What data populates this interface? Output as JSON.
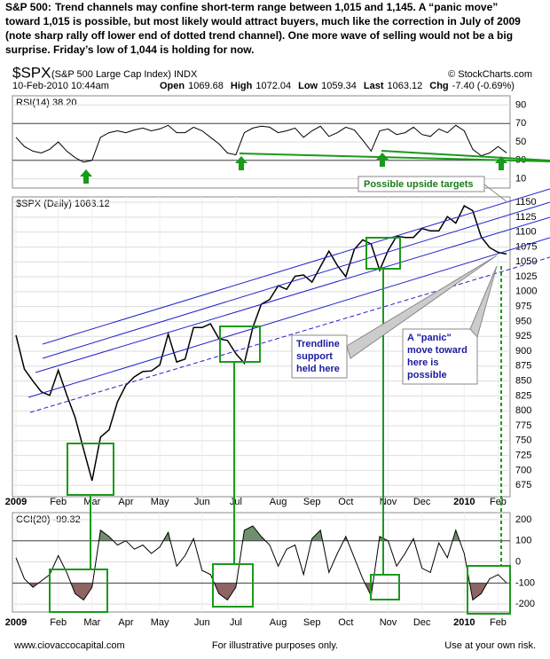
{
  "header": {
    "lead": "S&P 500:",
    "lines": [
      "Trend channels may confine short-term range between 1,015 and 1,145. A “panic move”",
      "toward 1,015 is possible, but most likely would attract buyers, much like the correction in July of 2009",
      "(note sharp rally off lower end of dotted trend channel).  One more wave of selling would not be a big",
      "surprise.   Friday’s low of 1,044 is holding for now."
    ],
    "symbol": "$SPX",
    "name": "(S&P 500 Large Cap Index) INDX",
    "source": "© StockCharts.com",
    "date": "10-Feb-2010 10:44am",
    "quote": [
      {
        "label": "Open",
        "value": "1069.68"
      },
      {
        "label": "High",
        "value": "1072.04"
      },
      {
        "label": "Low",
        "value": "1059.34"
      },
      {
        "label": "Last",
        "value": "1063.12"
      },
      {
        "label": "Chg",
        "value": "-7.40 (-0.69%)"
      }
    ]
  },
  "annotations": {
    "upside": "Possible upside targets",
    "trendline": [
      "Trendline",
      "support",
      "held here"
    ],
    "panic": [
      "A \"panic\"",
      "move toward",
      "here is",
      "possible"
    ]
  },
  "footer": {
    "left": "www.ciovaccocapital.com",
    "center": "For illustrative purposes only.",
    "right": "Use at your own risk."
  },
  "chart_data": [
    {
      "type": "line",
      "title": "RSI(14) 38.20",
      "color": "#000000",
      "values": [
        55,
        45,
        40,
        38,
        42,
        50,
        40,
        33,
        28,
        30,
        55,
        60,
        62,
        60,
        63,
        65,
        62,
        64,
        68,
        60,
        60,
        66,
        62,
        55,
        48,
        38,
        36,
        60,
        65,
        67,
        66,
        60,
        62,
        65,
        55,
        62,
        67,
        56,
        60,
        66,
        63,
        52,
        40,
        62,
        64,
        58,
        60,
        66,
        58,
        56,
        64,
        60,
        68,
        62,
        42,
        35,
        38,
        45,
        38.2
      ],
      "ylim": [
        0,
        100
      ],
      "yticks": [
        10,
        30,
        50,
        70,
        90
      ],
      "bands": {
        "upper": 70,
        "lower": 30
      }
    },
    {
      "type": "line",
      "title": "$SPX (Daily) 1063.12",
      "color": "#000000",
      "categories": [
        "2009",
        null,
        null,
        null,
        null,
        "Feb",
        null,
        null,
        null,
        "Mar",
        null,
        null,
        null,
        "Apr",
        null,
        null,
        null,
        "May",
        null,
        null,
        null,
        null,
        "Jun",
        null,
        null,
        null,
        "Jul",
        null,
        null,
        null,
        null,
        "Aug",
        null,
        null,
        null,
        "Sep",
        null,
        null,
        null,
        "Oct",
        null,
        null,
        null,
        null,
        "Nov",
        null,
        null,
        null,
        "Dec",
        null,
        null,
        null,
        null,
        "2010",
        null,
        null,
        null,
        "Feb",
        null
      ],
      "values": [
        927,
        870,
        850,
        832,
        826,
        868,
        827,
        789,
        735,
        683,
        756,
        768,
        815,
        843,
        857,
        866,
        867,
        877,
        929,
        882,
        887,
        940,
        940,
        946,
        921,
        918,
        896,
        880,
        940,
        979,
        987,
        1010,
        1004,
        1026,
        1028,
        1016,
        1042,
        1068,
        1044,
        1025,
        1071,
        1087,
        1080,
        1036,
        1069,
        1093,
        1091,
        1091,
        1106,
        1102,
        1102,
        1126,
        1115,
        1144,
        1136,
        1092,
        1074,
        1066,
        1063.12
      ],
      "ylim": [
        656,
        1159
      ],
      "yticks": [
        675,
        700,
        725,
        750,
        775,
        800,
        825,
        850,
        875,
        900,
        925,
        950,
        975,
        1000,
        1025,
        1050,
        1075,
        1100,
        1125,
        1150
      ]
    },
    {
      "type": "line",
      "title": "CCI(20) -99.32",
      "color": "#000000",
      "categories": [
        "2009",
        null,
        null,
        null,
        null,
        "Feb",
        null,
        null,
        null,
        "Mar",
        null,
        null,
        null,
        "Apr",
        null,
        null,
        null,
        "May",
        null,
        null,
        null,
        null,
        "Jun",
        null,
        null,
        null,
        "Jul",
        null,
        null,
        null,
        null,
        "Aug",
        null,
        null,
        null,
        "Sep",
        null,
        null,
        null,
        "Oct",
        null,
        null,
        null,
        null,
        "Nov",
        null,
        null,
        null,
        "Dec",
        null,
        null,
        null,
        null,
        "2010",
        null,
        null,
        null,
        "Feb",
        null
      ],
      "values": [
        20,
        -80,
        -120,
        -90,
        -60,
        30,
        -50,
        -150,
        -180,
        -120,
        150,
        120,
        80,
        100,
        60,
        80,
        40,
        70,
        140,
        -20,
        30,
        110,
        -40,
        -60,
        -150,
        -180,
        -120,
        150,
        170,
        120,
        80,
        -20,
        60,
        80,
        -60,
        110,
        150,
        -50,
        40,
        120,
        20,
        -80,
        -160,
        120,
        100,
        -20,
        40,
        110,
        -30,
        -50,
        90,
        20,
        150,
        40,
        -180,
        -150,
        -80,
        -60,
        -99.32
      ],
      "ylim": [
        -237,
        233
      ],
      "yticks": [
        -200,
        -100,
        0,
        100,
        200
      ],
      "bands": {
        "upper": 100,
        "lower": -100,
        "upper_color": "#6f8f6f",
        "lower_color": "#8f6464"
      }
    }
  ]
}
